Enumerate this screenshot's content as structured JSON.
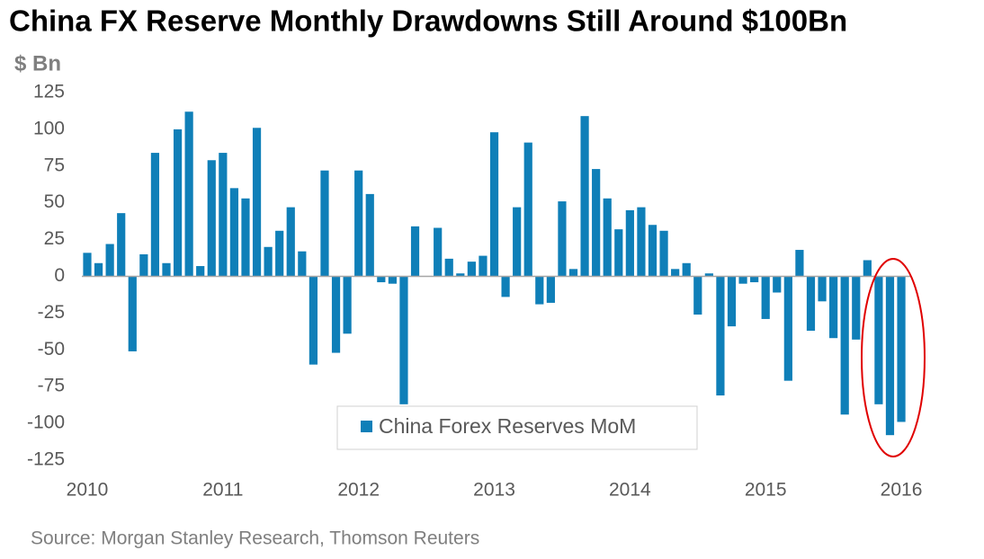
{
  "chart_data": {
    "type": "bar",
    "title": "China FX Reserve Monthly Drawdowns Still Around $100Bn",
    "y_label": "$ Bn",
    "source": "Source: Morgan Stanley Research, Thomson Reuters",
    "categories": [
      "2010",
      null,
      null,
      null,
      null,
      null,
      null,
      null,
      null,
      null,
      null,
      null,
      "2011",
      null,
      null,
      null,
      null,
      null,
      null,
      null,
      null,
      null,
      null,
      null,
      "2012",
      null,
      null,
      null,
      null,
      null,
      null,
      null,
      null,
      null,
      null,
      null,
      "2013",
      null,
      null,
      null,
      null,
      null,
      null,
      null,
      null,
      null,
      null,
      null,
      "2014",
      null,
      null,
      null,
      null,
      null,
      null,
      null,
      null,
      null,
      null,
      null,
      "2015",
      null,
      null,
      null,
      null,
      null,
      null,
      null,
      null,
      null,
      null,
      null,
      "2016"
    ],
    "series": [
      {
        "name": "China Forex Reserves MoM",
        "color": "#0f7fb8",
        "values": [
          16,
          9,
          22,
          43,
          -51,
          15,
          84,
          9,
          100,
          112,
          7,
          79,
          84,
          60,
          53,
          101,
          20,
          31,
          47,
          17,
          -60,
          72,
          -52,
          -39,
          72,
          56,
          -4,
          -5,
          -87,
          34,
          0,
          33,
          12,
          2,
          10,
          14,
          98,
          -14,
          47,
          91,
          -19,
          -18,
          51,
          5,
          109,
          73,
          53,
          32,
          45,
          47,
          35,
          31,
          5,
          9,
          -26,
          2,
          -81,
          -34,
          -5,
          -4,
          -29,
          -11,
          -71,
          18,
          -37,
          -17,
          -42,
          -94,
          -43,
          11,
          -87,
          -108,
          -99
        ]
      }
    ],
    "ylim": [
      -125,
      125
    ],
    "yticks": [
      -125,
      -100,
      -75,
      -50,
      -25,
      0,
      25,
      50,
      75,
      100,
      125
    ]
  }
}
